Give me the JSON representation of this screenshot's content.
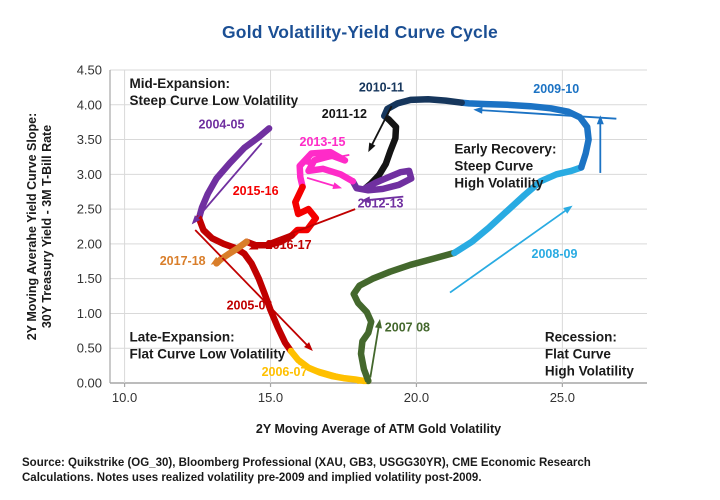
{
  "title": "Gold Volatility-Yield Curve Cycle",
  "source_lines": [
    "Source: Quikstrike (OG_30), Bloomberg Professional (XAU, GB3, USGG30YR), CME Economic Research",
    "Calculations. Notes uses realized volatility pre-2009 and implied volatility post-2009."
  ],
  "colors": {
    "title": "#1B4F94",
    "grid": "#D9D9D9",
    "axis": "#A6A6A6"
  },
  "chart_data": {
    "type": "line",
    "title": "Gold Volatility-Yield Curve Cycle",
    "xlabel": "2Y Moving Average of ATM Gold Volatility",
    "ylabel_lines": [
      "2Y Moving Averahe Yield Curve Slope:",
      "30Y Treasury Yield - 3M T-Bill Rate"
    ],
    "xlim": [
      9.5,
      27.9
    ],
    "ylim": [
      0,
      4.5
    ],
    "grid": true,
    "xticks": {
      "values": [
        10,
        15,
        20,
        25
      ],
      "labels": [
        "10.0",
        "15.0",
        "20.0",
        "25.0"
      ]
    },
    "yticks": {
      "values": [
        0,
        0.5,
        1,
        1.5,
        2,
        2.5,
        3,
        3.5,
        4,
        4.5
      ],
      "labels": [
        "0.00",
        "0.50",
        "1.00",
        "1.50",
        "2.00",
        "2.50",
        "3.00",
        "3.50",
        "4.00",
        "4.50"
      ]
    },
    "series": [
      {
        "name": "2004-05",
        "color": "#7030A0",
        "points": [
          [
            14.95,
            3.66
          ],
          [
            14.55,
            3.52
          ],
          [
            14.1,
            3.38
          ],
          [
            13.6,
            3.16
          ],
          [
            13.15,
            2.94
          ],
          [
            12.85,
            2.72
          ],
          [
            12.65,
            2.52
          ],
          [
            12.55,
            2.37
          ]
        ],
        "label": {
          "text": "2004-05",
          "pos": [
            13.32,
            3.66
          ]
        }
      },
      {
        "name": "2005-06",
        "color": "#C00000",
        "points": [
          [
            12.55,
            2.37
          ],
          [
            12.7,
            2.2
          ],
          [
            13.0,
            2.08
          ],
          [
            13.4,
            2.0
          ],
          [
            13.8,
            1.94
          ],
          [
            14.1,
            1.86
          ],
          [
            14.35,
            1.72
          ],
          [
            14.6,
            1.5
          ],
          [
            14.8,
            1.28
          ],
          [
            15.0,
            1.05
          ],
          [
            15.25,
            0.8
          ],
          [
            15.5,
            0.58
          ],
          [
            15.7,
            0.46
          ]
        ],
        "label": {
          "text": "2005-06",
          "pos": [
            14.28,
            1.06
          ]
        }
      },
      {
        "name": "2006-07",
        "color": "#FFC000",
        "points": [
          [
            15.7,
            0.46
          ],
          [
            15.95,
            0.33
          ],
          [
            16.3,
            0.22
          ],
          [
            16.7,
            0.15
          ],
          [
            17.1,
            0.1
          ],
          [
            17.5,
            0.07
          ],
          [
            17.9,
            0.05
          ],
          [
            18.2,
            0.03
          ],
          [
            18.35,
            0.03
          ]
        ],
        "label": {
          "text": "2006-07",
          "pos": [
            15.48,
            0.1
          ]
        }
      },
      {
        "name": "2007 08",
        "color": "#44682D",
        "points": [
          [
            18.35,
            0.03
          ],
          [
            18.2,
            0.2
          ],
          [
            18.1,
            0.42
          ],
          [
            18.15,
            0.6
          ],
          [
            18.35,
            0.72
          ],
          [
            18.45,
            0.88
          ],
          [
            18.3,
            1.02
          ],
          [
            18.0,
            1.15
          ],
          [
            17.85,
            1.28
          ],
          [
            18.05,
            1.4
          ],
          [
            18.5,
            1.5
          ],
          [
            19.1,
            1.6
          ],
          [
            19.8,
            1.7
          ],
          [
            20.6,
            1.79
          ],
          [
            21.3,
            1.87
          ]
        ],
        "label": {
          "text": "2007 08",
          "pos": [
            19.69,
            0.74
          ]
        }
      },
      {
        "name": "2008-09",
        "color": "#29ABE2",
        "points": [
          [
            21.3,
            1.87
          ],
          [
            21.9,
            2.03
          ],
          [
            22.5,
            2.24
          ],
          [
            23.1,
            2.47
          ],
          [
            23.7,
            2.7
          ],
          [
            24.25,
            2.9
          ],
          [
            24.8,
            3.0
          ],
          [
            25.3,
            3.05
          ],
          [
            25.65,
            3.1
          ]
        ],
        "label": {
          "text": "2008-09",
          "pos": [
            24.73,
            1.8
          ]
        }
      },
      {
        "name": "2009-10",
        "color": "#1C73C4",
        "points": [
          [
            25.65,
            3.1
          ],
          [
            25.8,
            3.3
          ],
          [
            25.9,
            3.5
          ],
          [
            25.85,
            3.68
          ],
          [
            25.6,
            3.82
          ],
          [
            25.2,
            3.9
          ],
          [
            24.6,
            3.95
          ],
          [
            23.9,
            3.98
          ],
          [
            23.1,
            4.0
          ],
          [
            22.4,
            4.01
          ],
          [
            21.8,
            4.02
          ],
          [
            21.55,
            4.03
          ]
        ],
        "label": {
          "text": "2009-10",
          "pos": [
            24.79,
            4.17
          ]
        }
      },
      {
        "name": "2010-11",
        "color": "#16365C",
        "points": [
          [
            21.55,
            4.03
          ],
          [
            21.0,
            4.06
          ],
          [
            20.4,
            4.08
          ],
          [
            19.8,
            4.07
          ],
          [
            19.35,
            4.02
          ],
          [
            19.0,
            3.94
          ],
          [
            18.9,
            3.84
          ],
          [
            19.05,
            3.79
          ]
        ],
        "label": {
          "text": "2010-11",
          "pos": [
            18.8,
            4.19
          ]
        }
      },
      {
        "name": "2011-12",
        "color": "#141414",
        "points": [
          [
            19.05,
            3.79
          ],
          [
            19.3,
            3.68
          ],
          [
            19.28,
            3.52
          ],
          [
            19.1,
            3.33
          ],
          [
            18.95,
            3.15
          ],
          [
            18.72,
            2.99
          ],
          [
            18.45,
            2.87
          ],
          [
            18.25,
            2.8
          ]
        ],
        "label": {
          "text": "2011-12",
          "pos": [
            17.53,
            3.81
          ]
        }
      },
      {
        "name": "2012-13",
        "color": "#7030A0",
        "points": [
          [
            18.25,
            2.8
          ],
          [
            18.6,
            2.88
          ],
          [
            19.05,
            2.96
          ],
          [
            19.45,
            3.03
          ],
          [
            19.75,
            3.05
          ],
          [
            19.82,
            2.94
          ],
          [
            19.4,
            2.85
          ],
          [
            18.85,
            2.79
          ],
          [
            18.35,
            2.77
          ],
          [
            17.95,
            2.8
          ],
          [
            17.82,
            2.9
          ]
        ],
        "label": {
          "text": "2012-13",
          "pos": [
            18.77,
            2.52
          ]
        }
      },
      {
        "name": "2013-15",
        "color": "#FF2BC8",
        "points": [
          [
            17.82,
            2.9
          ],
          [
            17.4,
            3.0
          ],
          [
            16.8,
            3.08
          ],
          [
            16.3,
            3.05
          ],
          [
            16.5,
            3.2
          ],
          [
            17.1,
            3.27
          ],
          [
            17.55,
            3.2
          ],
          [
            17.05,
            3.32
          ],
          [
            16.4,
            3.3
          ],
          [
            16.0,
            3.12
          ],
          [
            16.02,
            2.96
          ],
          [
            16.1,
            2.82
          ]
        ],
        "label": {
          "text": "2013-15",
          "pos": [
            16.78,
            3.41
          ]
        }
      },
      {
        "name": "2015-16",
        "color": "#F40000",
        "points": [
          [
            16.1,
            2.82
          ],
          [
            15.85,
            2.6
          ],
          [
            15.95,
            2.43
          ],
          [
            16.3,
            2.5
          ],
          [
            16.55,
            2.37
          ],
          [
            16.25,
            2.2
          ],
          [
            15.92,
            2.2
          ],
          [
            15.73,
            2.12
          ]
        ],
        "label": {
          "text": "2015-16",
          "pos": [
            14.49,
            2.7
          ]
        }
      },
      {
        "name": "2016-17",
        "color": "#C00000",
        "points": [
          [
            15.73,
            2.12
          ],
          [
            15.35,
            2.03
          ],
          [
            14.9,
            1.98
          ],
          [
            14.5,
            1.98
          ],
          [
            14.18,
            2.03
          ]
        ],
        "label": {
          "text": "2016-17",
          "pos": [
            15.62,
            1.93
          ]
        }
      },
      {
        "name": "2017-18",
        "color": "#D97E2A",
        "points": [
          [
            14.18,
            2.03
          ],
          [
            13.85,
            1.93
          ],
          [
            13.55,
            1.85
          ],
          [
            13.3,
            1.78
          ],
          [
            13.15,
            1.72
          ]
        ],
        "label": {
          "text": "2017-18",
          "pos": [
            11.99,
            1.7
          ]
        }
      }
    ],
    "arrows": [
      {
        "color": "#7030A0",
        "from": [
          14.7,
          3.45
        ],
        "to": [
          12.3,
          2.28
        ]
      },
      {
        "color": "#C00000",
        "from": [
          12.42,
          2.2
        ],
        "to": [
          16.45,
          0.46
        ]
      },
      {
        "color": "#FFC000",
        "from": [
          15.95,
          0.28
        ],
        "to": [
          18.3,
          0.0
        ]
      },
      {
        "color": "#44682D",
        "from": [
          18.42,
          0.08
        ],
        "to": [
          18.75,
          0.92
        ]
      },
      {
        "color": "#29ABE2",
        "from": [
          21.15,
          1.3
        ],
        "to": [
          25.35,
          2.55
        ]
      },
      {
        "color": "#1C73C4",
        "from": [
          26.3,
          3.02
        ],
        "to": [
          26.3,
          3.85
        ]
      },
      {
        "color": "#1C73C4",
        "from": [
          26.85,
          3.8
        ],
        "to": [
          21.95,
          3.93
        ]
      },
      {
        "color": "#141414",
        "from": [
          19.15,
          3.98
        ],
        "to": [
          18.35,
          3.32
        ]
      },
      {
        "color": "#C00000",
        "from": [
          17.9,
          2.5
        ],
        "to": [
          14.25,
          1.92
        ]
      },
      {
        "color": "#FF2BC8",
        "from": [
          17.7,
          3.28
        ],
        "to": [
          16.1,
          3.15
        ]
      },
      {
        "color": "#FF2BC8",
        "from": [
          16.25,
          2.95
        ],
        "to": [
          17.45,
          2.8
        ]
      },
      {
        "color": "#7030A0",
        "from": [
          19.55,
          2.68
        ],
        "to": [
          18.1,
          2.62
        ]
      },
      {
        "color": "#D97E2A",
        "from": [
          13.6,
          1.88
        ],
        "to": [
          12.95,
          1.7
        ]
      }
    ],
    "quadrant_labels": [
      {
        "id": "mid-expansion",
        "lines": [
          "Mid-Expansion:",
          "Steep Curve Low Volatility"
        ],
        "pos": [
          10.17,
          4.24
        ]
      },
      {
        "id": "early-recovery",
        "lines": [
          "Early Recovery:",
          "Steep Curve",
          "High Volatility"
        ],
        "pos": [
          21.3,
          3.3
        ]
      },
      {
        "id": "late-expansion",
        "lines": [
          "Late-Expansion:",
          "Flat Curve Low Volatility"
        ],
        "pos": [
          10.17,
          0.6
        ]
      },
      {
        "id": "recession",
        "lines": [
          "Recession:",
          "Flat Curve",
          "High Volatility"
        ],
        "pos": [
          24.4,
          0.6
        ]
      }
    ]
  }
}
